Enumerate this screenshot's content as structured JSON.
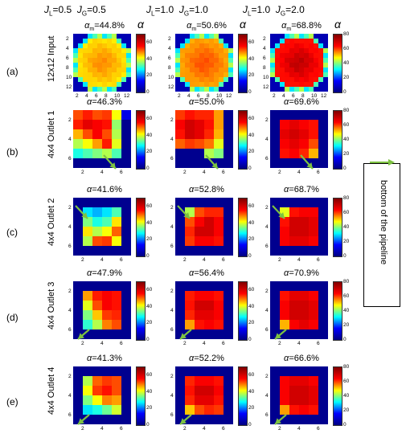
{
  "columns": [
    {
      "jl": "J",
      "jl_sub": "L",
      "jl_val": "=0.5",
      "jg": "J",
      "jg_sub": "G",
      "jg_val": "=0.5"
    },
    {
      "jl": "J",
      "jl_sub": "L",
      "jl_val": "=1.0",
      "jg": "J",
      "jg_sub": "G",
      "jg_val": "=1.0"
    },
    {
      "jl": "J",
      "jl_sub": "L",
      "jl_val": "=1.0",
      "jg": "J",
      "jg_sub": "G",
      "jg_val": "=2.0"
    }
  ],
  "alpha_symbol": "α",
  "rows": [
    {
      "label": "(a)",
      "title": "12x12 Input",
      "panels": [
        "αm=44.8%",
        "αm=50.6%",
        "αm=68.8%"
      ]
    },
    {
      "label": "(b)",
      "title": "4x4 Outlet 1",
      "panels": [
        "α=46.3%",
        "α=55.0%",
        "α=69.6%"
      ]
    },
    {
      "label": "(c)",
      "title": "4x4 Outlet 2",
      "panels": [
        "α=41.6%",
        "α=52.8%",
        "α=68.7%"
      ]
    },
    {
      "label": "(d)",
      "title": "4x4 Outlet 3",
      "panels": [
        "α=47.9%",
        "α=56.4%",
        "α=70.9%"
      ]
    },
    {
      "label": "(e)",
      "title": "4x4 Outlet 4",
      "panels": [
        "α=41.3%",
        "α=52.2%",
        "α=66.6%"
      ]
    }
  ],
  "panel_titles_parts": [
    [
      [
        "α",
        "m",
        "=44.8%"
      ],
      [
        "α",
        "m",
        "=50.6%"
      ],
      [
        "α",
        "m",
        "=68.8%"
      ]
    ],
    [
      [
        "α",
        "",
        "=46.3%"
      ],
      [
        "α",
        "",
        "=55.0%"
      ],
      [
        "α",
        "",
        "=69.6%"
      ]
    ],
    [
      [
        "α",
        "",
        "=41.6%"
      ],
      [
        "α",
        "",
        "=52.8%"
      ],
      [
        "α",
        "",
        "=68.7%"
      ]
    ],
    [
      [
        "α",
        "",
        "=47.9%"
      ],
      [
        "α",
        "",
        "=56.4%"
      ],
      [
        "α",
        "",
        "=70.9%"
      ]
    ],
    [
      [
        "α",
        "",
        "=41.3%"
      ],
      [
        "α",
        "",
        "=52.2%"
      ],
      [
        "α",
        "",
        "=66.6%"
      ]
    ]
  ],
  "ticks_12": [
    "2",
    "4",
    "6",
    "8",
    "10",
    "12"
  ],
  "ticks_6": [
    "2",
    "4",
    "6"
  ],
  "colorbar_ticks": {
    "col0": [
      "60",
      "40",
      "20",
      "0"
    ],
    "col1": [
      "60",
      "40",
      "20",
      "0"
    ],
    "col2": [
      "80",
      "60",
      "40",
      "20",
      "0"
    ]
  },
  "legend": {
    "text": "bottom of the pipeline",
    "arrow_color": "#7dc242"
  },
  "colors": {
    "background_blue": "#00008f",
    "arrow": "#7dc242"
  }
}
